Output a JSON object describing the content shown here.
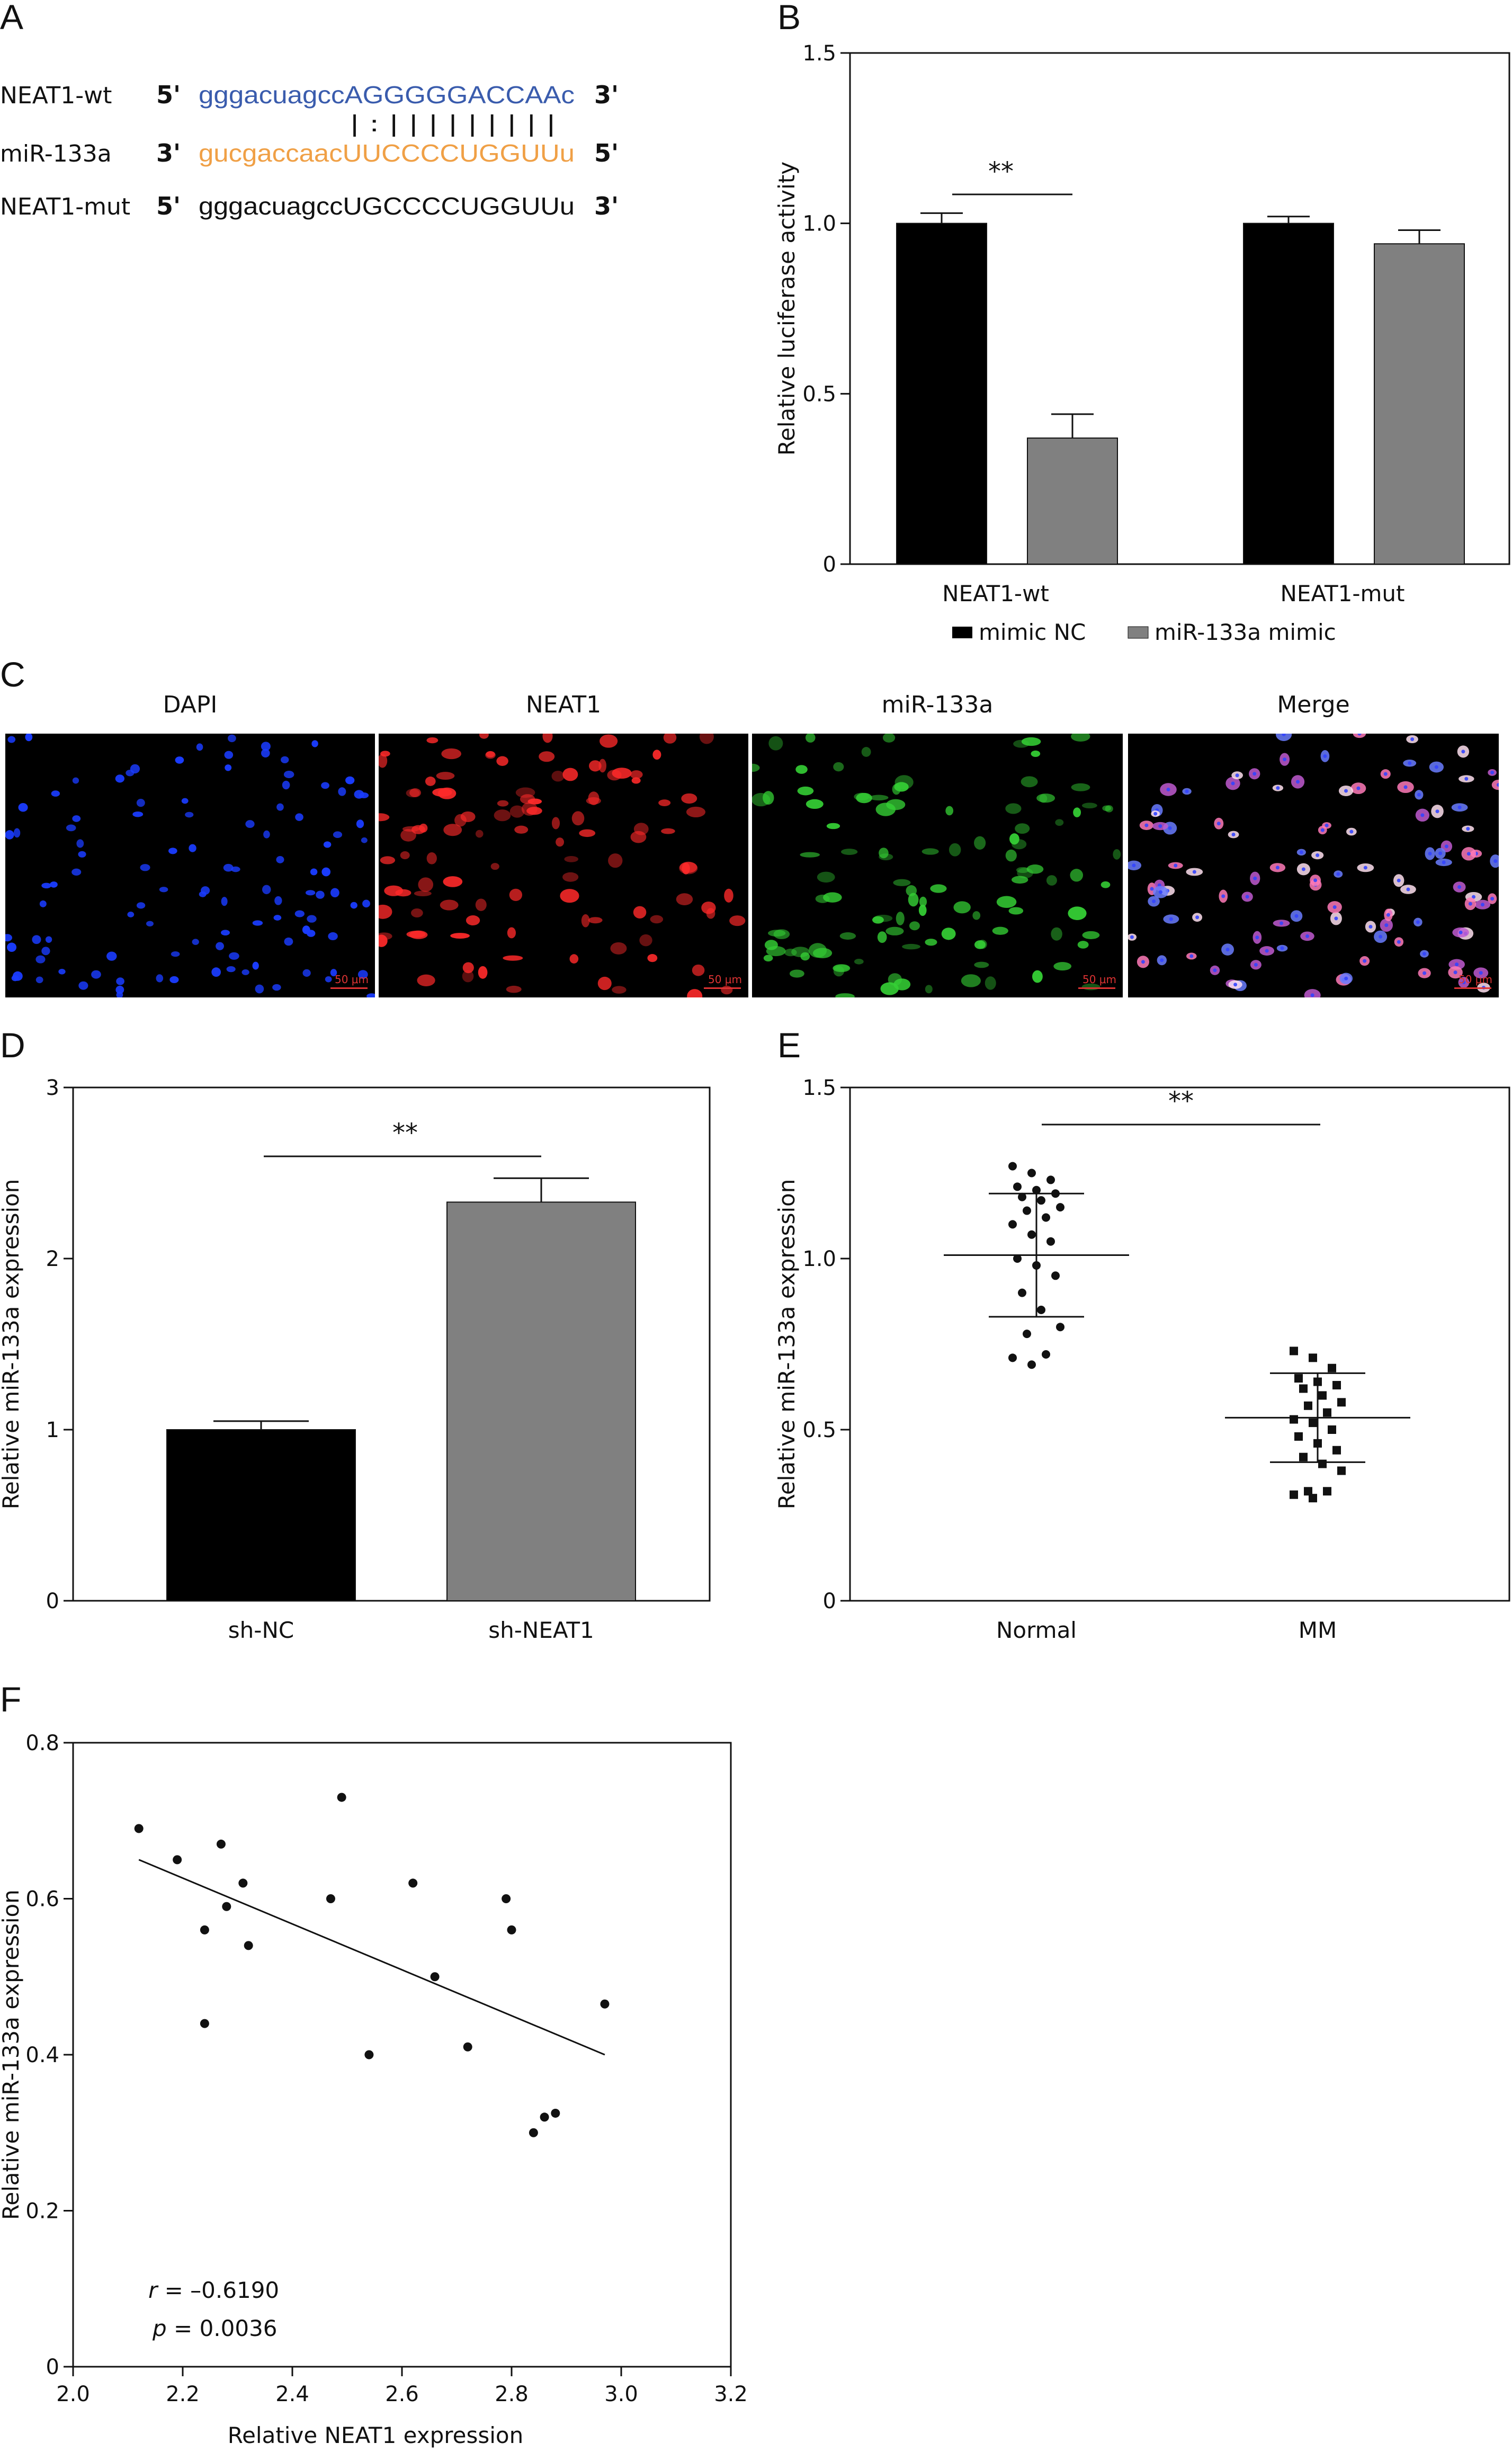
{
  "panels": {
    "A": "A",
    "B": "B",
    "C": "C",
    "D": "D",
    "E": "E",
    "F": "F"
  },
  "panel_a": {
    "rows": [
      {
        "label": "NEAT1-wt",
        "left": "5'",
        "right": "3'",
        "seq_lower": "gggacuagcc",
        "seq_upper": "AGGGGGACCAA",
        "seq_tail": "c",
        "color": "#3a5cad"
      },
      {
        "label": "miR-133a",
        "left": "3'",
        "right": "5'",
        "seq_lower": "gucgaccaac",
        "seq_upper": "UUCCCCUGGUU",
        "seq_tail": "u",
        "color": "#f0a046"
      },
      {
        "label": "NEAT1-mut",
        "left": "5'",
        "right": "3'",
        "seq_lower": "gggacuagcc",
        "seq_upper": "UGCCCCUGGUU",
        "seq_tail": "u",
        "color": "#111111"
      }
    ],
    "pairing": "| : | | | | | | | | |"
  },
  "panel_c": {
    "titles": [
      "DAPI",
      "NEAT1",
      "miR-133a",
      "Merge"
    ],
    "scale_label": "50 μm",
    "colors": [
      "#1a3cff",
      "#ff2a2a",
      "#35d035",
      "#ffffff"
    ]
  },
  "chart_data": [
    {
      "id": "B",
      "type": "bar",
      "categories": [
        "NEAT1-wt",
        "NEAT1-mut"
      ],
      "series": [
        {
          "name": "mimic NC",
          "values": [
            1.0,
            1.0
          ],
          "errors": [
            0.03,
            0.02
          ],
          "color": "#000000"
        },
        {
          "name": "miR-133a mimic",
          "values": [
            0.37,
            0.94
          ],
          "errors": [
            0.07,
            0.04
          ],
          "color": "#808080"
        }
      ],
      "ylabel": "Relative luciferase activity",
      "ylim": [
        0,
        1.5
      ],
      "yticks": [
        0,
        0.5,
        1.0,
        1.5
      ],
      "yticklabels": [
        "0",
        "0.5",
        "1.0",
        "1.5"
      ],
      "significance": "**",
      "legend_position": "bottom"
    },
    {
      "id": "C",
      "type": "bar",
      "categories": [
        "sh-NC",
        "sh-NEAT1"
      ],
      "values": [
        1.0,
        2.33
      ],
      "errors": [
        0.05,
        0.14
      ],
      "colors": [
        "#000000",
        "#808080"
      ],
      "ylabel": "Relative miR-133a expression",
      "ylim": [
        0,
        3
      ],
      "yticks": [
        0,
        1,
        2,
        3
      ],
      "yticklabels": [
        "0",
        "1",
        "2",
        "3"
      ],
      "significance": "**"
    },
    {
      "id": "E",
      "type": "scatter",
      "categories": [
        "Normal",
        "MM"
      ],
      "groups": [
        {
          "name": "Normal",
          "marker": "circle",
          "mean": 1.01,
          "sd": 0.18,
          "points": [
            1.27,
            1.25,
            1.23,
            1.21,
            1.2,
            1.19,
            1.18,
            1.17,
            1.15,
            1.14,
            1.12,
            1.1,
            1.07,
            1.05,
            1.0,
            0.98,
            0.95,
            0.9,
            0.85,
            0.8,
            0.78,
            0.72,
            0.71,
            0.69
          ]
        },
        {
          "name": "MM",
          "marker": "square",
          "mean": 0.535,
          "sd": 0.13,
          "points": [
            0.73,
            0.71,
            0.68,
            0.65,
            0.64,
            0.63,
            0.62,
            0.6,
            0.58,
            0.57,
            0.55,
            0.53,
            0.52,
            0.5,
            0.48,
            0.46,
            0.44,
            0.42,
            0.4,
            0.38,
            0.32,
            0.32,
            0.31,
            0.3
          ]
        }
      ],
      "ylabel": "Relative miR-133a expression",
      "ylim": [
        0,
        1.5
      ],
      "yticks": [
        0,
        0.5,
        1.0,
        1.5
      ],
      "yticklabels": [
        "0",
        "0.5",
        "1.0",
        "1.5"
      ],
      "significance": "**"
    },
    {
      "id": "F",
      "type": "scatter",
      "points": [
        [
          2.12,
          0.69
        ],
        [
          2.19,
          0.65
        ],
        [
          2.24,
          0.56
        ],
        [
          2.24,
          0.44
        ],
        [
          2.27,
          0.67
        ],
        [
          2.28,
          0.59
        ],
        [
          2.31,
          0.62
        ],
        [
          2.32,
          0.54
        ],
        [
          2.47,
          0.6
        ],
        [
          2.49,
          0.73
        ],
        [
          2.54,
          0.4
        ],
        [
          2.62,
          0.62
        ],
        [
          2.66,
          0.5
        ],
        [
          2.72,
          0.41
        ],
        [
          2.79,
          0.6
        ],
        [
          2.8,
          0.56
        ],
        [
          2.84,
          0.3
        ],
        [
          2.86,
          0.32
        ],
        [
          2.88,
          0.325
        ],
        [
          2.97,
          0.465
        ]
      ],
      "fit_line": [
        [
          2.12,
          0.65
        ],
        [
          2.97,
          0.4
        ]
      ],
      "xlabel": "Relative NEAT1 expression",
      "ylabel": "Relative miR-133a expression",
      "xlim": [
        2.0,
        3.2
      ],
      "ylim": [
        0,
        0.8
      ],
      "xticks": [
        2.0,
        2.2,
        2.4,
        2.6,
        2.8,
        3.0,
        3.2
      ],
      "xticklabels": [
        "2.0",
        "2.2",
        "2.4",
        "2.6",
        "2.8",
        "3.0",
        "3.2"
      ],
      "yticks": [
        0,
        0.2,
        0.4,
        0.6,
        0.8
      ],
      "yticklabels": [
        "0",
        "0.2",
        "0.4",
        "0.6",
        "0.8"
      ],
      "annotations": {
        "r_label": "r",
        "r_value": " = –0.6190",
        "p_label": "p",
        "p_value": " = 0.0036"
      }
    }
  ]
}
